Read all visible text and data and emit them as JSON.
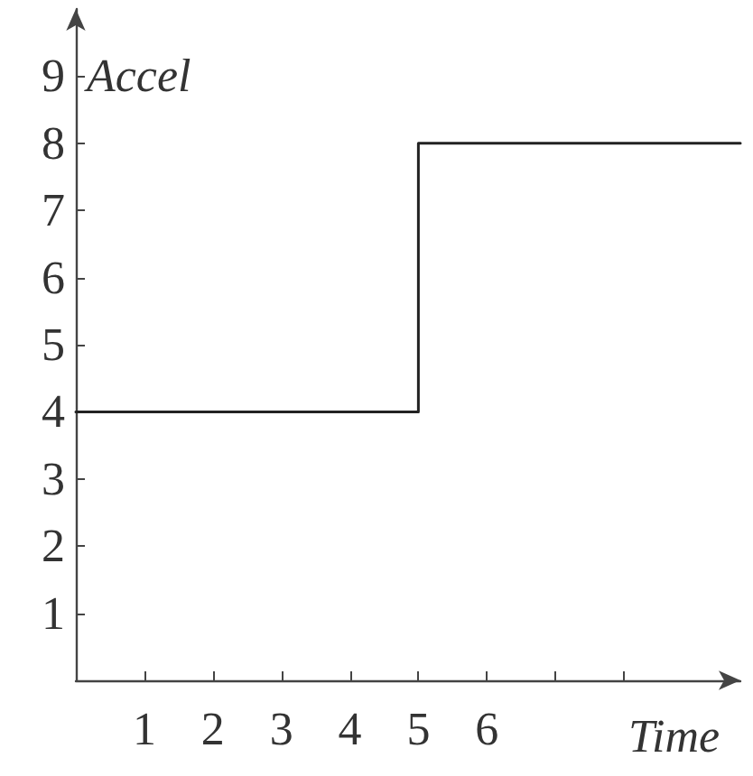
{
  "chart_data": {
    "type": "step",
    "xlabel": "Time",
    "ylabel": "Accel",
    "x": [
      0,
      5,
      9.7
    ],
    "values": [
      4,
      8,
      8
    ],
    "color": "#222222",
    "xlim": [
      0,
      9.7
    ],
    "ylim": [
      0,
      10
    ],
    "xticks": [
      1,
      2,
      3,
      4,
      5,
      6,
      {
        "value": 7,
        "label": null
      },
      {
        "value": 8,
        "label": null
      }
    ],
    "yticks": [
      1,
      2,
      3,
      4,
      5,
      6,
      7,
      8,
      9
    ],
    "grid": false,
    "marker": "none",
    "line_style": "solid"
  }
}
